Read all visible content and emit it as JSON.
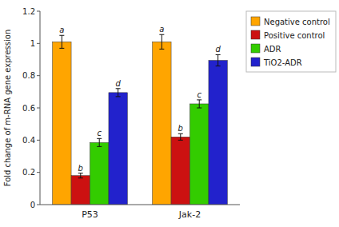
{
  "chart_data": {
    "type": "bar",
    "ylabel": "Fold change of m-RNA gene expression",
    "categories": [
      "P53",
      "Jak-2"
    ],
    "series": [
      {
        "name": "Negative control",
        "color": "#FFA500",
        "values": [
          1.01,
          1.01
        ],
        "errors": [
          0.04,
          0.045
        ],
        "annotations": [
          "a",
          "a"
        ]
      },
      {
        "name": "Positive control",
        "color": "#CC1111",
        "values": [
          0.18,
          0.42
        ],
        "errors": [
          0.015,
          0.02
        ],
        "annotations": [
          "b",
          "b"
        ]
      },
      {
        "name": "ADR",
        "color": "#33CC00",
        "values": [
          0.385,
          0.625
        ],
        "errors": [
          0.025,
          0.025
        ],
        "annotations": [
          "c",
          "c"
        ]
      },
      {
        "name": "TiO2-ADR",
        "color": "#2222CC",
        "values": [
          0.695,
          0.895
        ],
        "errors": [
          0.025,
          0.035
        ],
        "annotations": [
          "d",
          "d"
        ]
      }
    ],
    "ylim": [
      0,
      1.2
    ],
    "yticks": [
      0,
      0.2,
      0.4,
      0.6,
      0.8,
      1,
      1.2
    ],
    "grid": false,
    "legend": "right"
  }
}
